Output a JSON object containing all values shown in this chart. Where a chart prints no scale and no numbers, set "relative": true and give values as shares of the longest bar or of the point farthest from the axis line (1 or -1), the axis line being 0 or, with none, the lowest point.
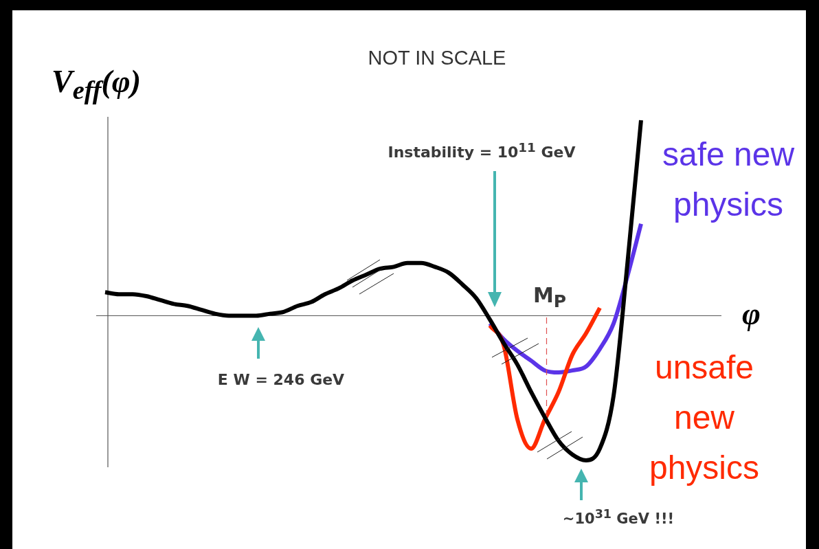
{
  "chart_data": {
    "type": "line",
    "title": "NOT IN SCALE",
    "xlabel": "φ",
    "ylabel": "V$_{eff}$(φ)",
    "relative": true,
    "annotations": [
      "Instability = 10$^{11}$ GeV",
      "E W = 246 GeV",
      "M$_{P}$",
      "~10$^{31}$ GeV !!!"
    ],
    "categories": [
      null,
      null,
      null,
      null,
      null,
      null,
      null,
      null,
      null,
      null,
      null,
      null,
      null,
      null,
      null,
      null,
      null,
      null,
      null,
      null,
      null,
      null,
      null,
      null,
      null,
      null,
      null,
      null,
      null,
      null,
      null,
      null,
      null,
      null,
      null,
      null,
      null,
      null,
      null,
      null
    ],
    "series": [
      {
        "color": "#000000",
        "values": [
          0.12,
          0.11,
          0.11,
          0.1,
          0.08,
          0.06,
          0.05,
          0.03,
          0.01,
          0,
          0,
          0,
          0.01,
          0.02,
          0.05,
          0.07,
          0.11,
          0.14,
          0.18,
          0.21,
          0.24,
          0.25,
          0.27,
          0.27,
          0.25,
          0.22,
          0.16,
          0.09,
          -0.02,
          -0.14,
          -0.25,
          -0.39,
          -0.52,
          -0.64,
          -0.71,
          -0.74,
          -0.68,
          -0.41,
          0.26,
          1
        ]
      },
      {
        "name": "unsafe new physics",
        "color": "#ff2a00",
        "values": [
          null,
          null,
          null,
          null,
          null,
          null,
          null,
          null,
          null,
          null,
          null,
          null,
          null,
          null,
          null,
          null,
          null,
          null,
          null,
          null,
          null,
          null,
          null,
          null,
          null,
          null,
          null,
          null,
          -0.05,
          -0.15,
          -0.53,
          -0.68,
          -0.53,
          -0.39,
          -0.2,
          -0.09,
          0.04,
          null,
          null,
          null
        ]
      },
      {
        "name": "safe new physics",
        "color": "#5b34e8",
        "values": [
          null,
          null,
          null,
          null,
          null,
          null,
          null,
          null,
          null,
          null,
          null,
          null,
          null,
          null,
          null,
          null,
          null,
          null,
          null,
          null,
          null,
          null,
          null,
          null,
          null,
          null,
          null,
          null,
          -0.04,
          -0.12,
          -0.18,
          -0.23,
          -0.28,
          -0.29,
          -0.28,
          -0.26,
          -0.17,
          -0.04,
          0.2,
          0.47
        ]
      }
    ]
  }
}
